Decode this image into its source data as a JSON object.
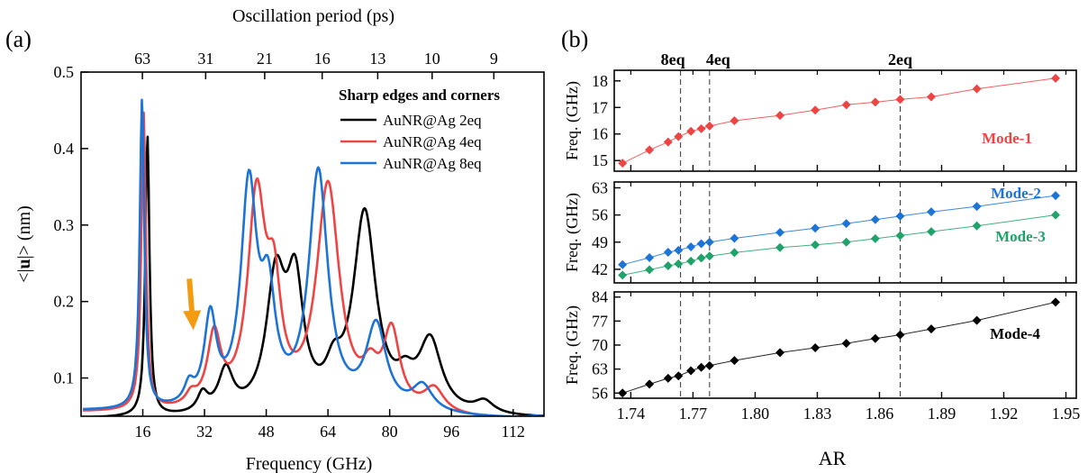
{
  "figure": {
    "panel_a_label": "(a)",
    "panel_b_label": "(b)"
  },
  "chart_data": [
    {
      "type": "line",
      "panel": "(a)",
      "xlabel": "Frequency (GHz)",
      "ylabel": "<|u|> (nm)",
      "xlim": [
        0,
        120
      ],
      "ylim": [
        0.05,
        0.5
      ],
      "x_ticks": [
        16,
        32,
        48,
        64,
        80,
        96,
        112
      ],
      "y_ticks": [
        0.1,
        0.2,
        0.3,
        0.4,
        0.5
      ],
      "top_axis": {
        "label": "Oscillation period (ps)",
        "ticks": [
          {
            "label": "63",
            "freq": 15.9
          },
          {
            "label": "31",
            "freq": 32.3
          },
          {
            "label": "21",
            "freq": 47.6
          },
          {
            "label": "16",
            "freq": 62.5
          },
          {
            "label": "13",
            "freq": 76.9
          },
          {
            "label": "10",
            "freq": 91.0
          },
          {
            "label": "9",
            "freq": 107.0
          }
        ]
      },
      "legend": {
        "title": "Sharp edges and corners",
        "position": "top-right"
      },
      "annotations": [
        {
          "kind": "arrow",
          "color": "#f39c12",
          "points_to_freq": 29,
          "points_to_value": 0.165
        }
      ],
      "series": [
        {
          "name": "AuNR@Ag 2eq",
          "color": "#000000",
          "peaks": [
            [
              17.2,
              0.367,
              0.65
            ],
            [
              31.5,
              0.024,
              1.6
            ],
            [
              37.5,
              0.055,
              2.3
            ],
            [
              50.5,
              0.17,
              3.0
            ],
            [
              55.5,
              0.155,
              2.6
            ],
            [
              65.5,
              0.04,
              2.5
            ],
            [
              73.5,
              0.26,
              3.6
            ],
            [
              84.0,
              0.03,
              2.8
            ],
            [
              90.5,
              0.092,
              3.6
            ],
            [
              104.5,
              0.016,
              3.0
            ]
          ],
          "baseline": [
            0.046,
            0.0
          ]
        },
        {
          "name": "AuNR@Ag 4eq",
          "color": "#ef4444",
          "peaks": [
            [
              16.2,
              0.39,
              0.7
            ],
            [
              28.5,
              0.014,
              1.6
            ],
            [
              34.5,
              0.092,
              2.1
            ],
            [
              45.5,
              0.27,
              2.8
            ],
            [
              50.0,
              0.13,
              2.2
            ],
            [
              64.0,
              0.295,
              3.6
            ],
            [
              75.0,
              0.04,
              2.5
            ],
            [
              80.5,
              0.1,
              2.6
            ],
            [
              91.5,
              0.032,
              3.2
            ]
          ],
          "baseline": [
            0.054,
            -9e-05
          ]
        },
        {
          "name": "AuNR@Ag 8eq",
          "color": "#1d73d6",
          "peaks": [
            [
              15.8,
              0.405,
              0.7
            ],
            [
              28.0,
              0.024,
              1.5
            ],
            [
              33.5,
              0.115,
              1.9
            ],
            [
              43.5,
              0.285,
              2.5
            ],
            [
              48.5,
              0.13,
              2.2
            ],
            [
              61.5,
              0.31,
              3.0
            ],
            [
              76.5,
              0.11,
              3.2
            ],
            [
              88.5,
              0.034,
              3.2
            ],
            [
              118.0,
              0.003,
              2.5
            ]
          ],
          "baseline": [
            0.056,
            -9e-05
          ]
        }
      ]
    },
    {
      "type": "line",
      "panel": "(b)",
      "xlabel": "AR",
      "xlim": [
        1.732,
        1.955
      ],
      "x_ticks": [
        1.74,
        1.77,
        1.8,
        1.83,
        1.86,
        1.89,
        1.92,
        1.95
      ],
      "x_tick_labels": [
        "1.74",
        "1.77",
        "1.80",
        "1.83",
        "1.86",
        "1.89",
        "1.92",
        "1.95"
      ],
      "reference_lines": [
        {
          "label": "8eq",
          "x": 1.764
        },
        {
          "label": "4eq",
          "x": 1.778
        },
        {
          "label": "2eq",
          "x": 1.87
        }
      ],
      "x": [
        1.736,
        1.749,
        1.758,
        1.763,
        1.769,
        1.774,
        1.778,
        1.79,
        1.812,
        1.829,
        1.844,
        1.858,
        1.87,
        1.885,
        1.907,
        1.945
      ],
      "subplots": [
        {
          "ylabel": "Freq. (GHz)",
          "ylim": [
            14.6,
            18.4
          ],
          "y_ticks": [
            15,
            16,
            17,
            18
          ],
          "series": [
            {
              "name": "Mode-1",
              "color": "#ef4444",
              "values": [
                14.9,
                15.4,
                15.7,
                15.9,
                16.1,
                16.2,
                16.3,
                16.5,
                16.7,
                16.9,
                17.1,
                17.2,
                17.3,
                17.4,
                17.7,
                18.1
              ]
            }
          ]
        },
        {
          "ylabel": "Freq. (GHz)",
          "ylim": [
            38.5,
            64.5
          ],
          "y_ticks": [
            42,
            49,
            56,
            63
          ],
          "series": [
            {
              "name": "Mode-2",
              "color": "#1d73d6",
              "values": [
                43.2,
                45.0,
                46.4,
                46.9,
                47.8,
                48.6,
                49.0,
                50.0,
                51.5,
                52.6,
                53.8,
                54.8,
                55.7,
                56.8,
                58.2,
                61.0
              ]
            },
            {
              "name": "Mode-3",
              "color": "#1fa36a",
              "values": [
                40.5,
                41.9,
                42.9,
                43.4,
                44.1,
                44.9,
                45.4,
                46.3,
                47.6,
                48.3,
                49.0,
                49.9,
                50.7,
                51.7,
                53.2,
                56.0
              ]
            }
          ]
        },
        {
          "ylabel": "Freq. (GHz)",
          "ylim": [
            54.5,
            85.5
          ],
          "y_ticks": [
            56,
            63,
            70,
            77,
            84
          ],
          "series": [
            {
              "name": "Mode-4",
              "color": "#000000",
              "values": [
                56.0,
                58.6,
                60.3,
                61.0,
                62.5,
                63.5,
                64.0,
                65.5,
                67.8,
                69.2,
                70.5,
                71.9,
                73.0,
                74.7,
                77.2,
                82.5
              ]
            }
          ]
        }
      ]
    }
  ]
}
